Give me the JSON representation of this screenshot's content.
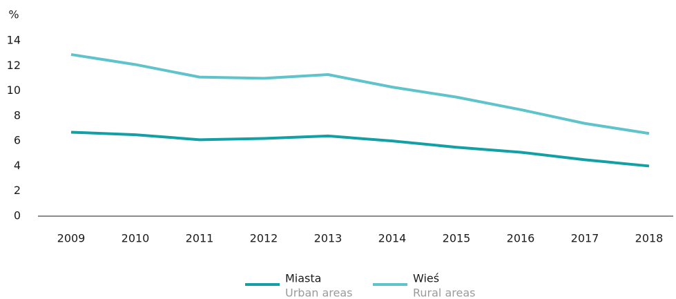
{
  "chart_data": {
    "type": "line",
    "y_label": "%",
    "categories": [
      "2009",
      "2010",
      "2011",
      "2012",
      "2013",
      "2014",
      "2015",
      "2016",
      "2017",
      "2018"
    ],
    "series": [
      {
        "name": "Miasta",
        "name_en": "Urban areas",
        "color": "#12a0a5",
        "values": [
          6.7,
          6.5,
          6.1,
          6.2,
          6.4,
          6.0,
          5.5,
          5.1,
          4.5,
          4.0
        ]
      },
      {
        "name": "Wieś",
        "name_en": "Rural areas",
        "color": "#5ec3ca",
        "values": [
          12.9,
          12.1,
          11.1,
          11.0,
          11.3,
          10.3,
          9.5,
          8.5,
          7.4,
          6.6
        ]
      }
    ],
    "ylim": [
      0,
      14
    ],
    "yticks": [
      0,
      2,
      4,
      6,
      8,
      10,
      12,
      14
    ],
    "grid": false
  }
}
